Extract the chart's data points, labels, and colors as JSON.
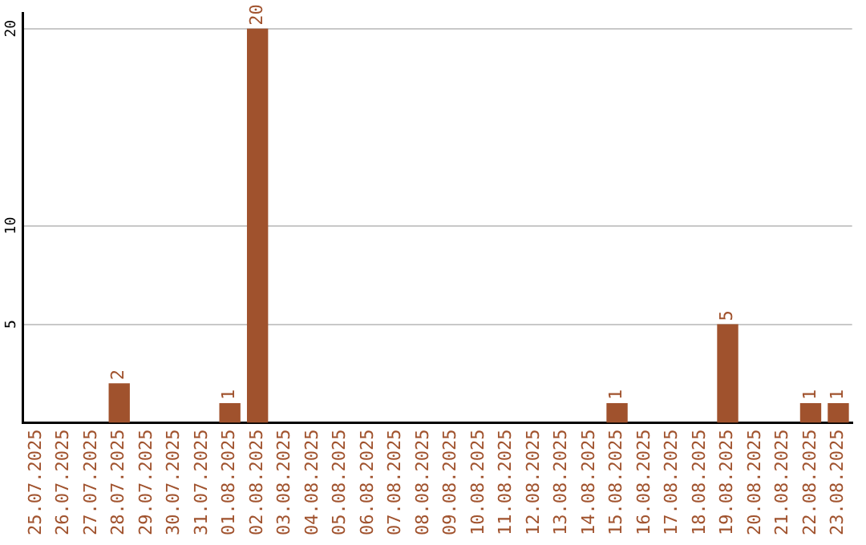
{
  "chart_data": {
    "type": "bar",
    "categories": [
      "25.07.2025",
      "26.07.2025",
      "27.07.2025",
      "28.07.2025",
      "29.07.2025",
      "30.07.2025",
      "31.07.2025",
      "01.08.2025",
      "02.08.2025",
      "03.08.2025",
      "04.08.2025",
      "05.08.2025",
      "06.08.2025",
      "07.08.2025",
      "08.08.2025",
      "09.08.2025",
      "10.08.2025",
      "11.08.2025",
      "12.08.2025",
      "13.08.2025",
      "14.08.2025",
      "15.08.2025",
      "16.08.2025",
      "17.08.2025",
      "18.08.2025",
      "19.08.2025",
      "20.08.2025",
      "21.08.2025",
      "22.08.2025",
      "23.08.2025"
    ],
    "values": [
      0,
      0,
      0,
      2,
      0,
      0,
      0,
      1,
      20,
      0,
      0,
      0,
      0,
      0,
      0,
      0,
      0,
      0,
      0,
      0,
      0,
      1,
      0,
      0,
      0,
      5,
      0,
      0,
      1,
      1
    ],
    "value_labels": [
      null,
      null,
      null,
      "2",
      null,
      null,
      null,
      "1",
      "20",
      null,
      null,
      null,
      null,
      null,
      null,
      null,
      null,
      null,
      null,
      null,
      null,
      "1",
      null,
      null,
      null,
      "5",
      null,
      null,
      "1",
      "1"
    ],
    "color": "#a0522d",
    "ylim": [
      0,
      20.8
    ],
    "yticks": [
      5,
      10,
      20
    ],
    "grid": "y",
    "legend": false
  }
}
